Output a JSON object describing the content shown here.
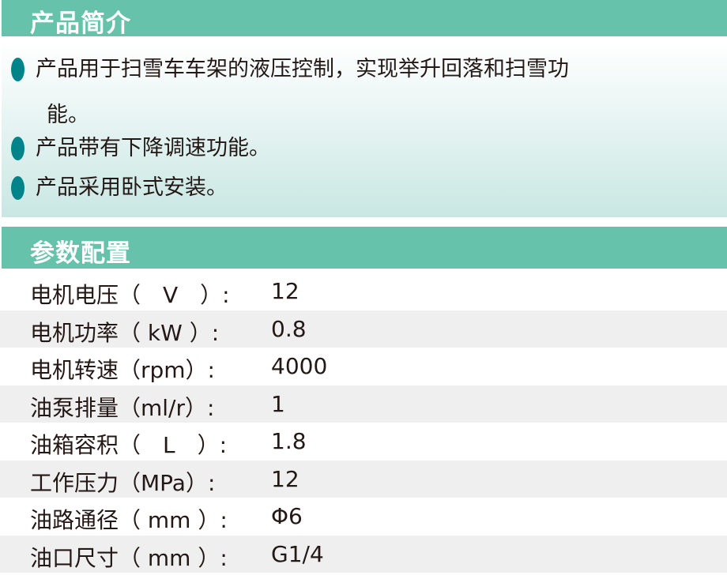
{
  "intro": {
    "title": "产品简介",
    "bullets": [
      {
        "line1": "产品用于扫雪车车架的液压控制，实现举升回落和扫雪功",
        "line2": "能。"
      },
      {
        "line1": "产品带有下降调速功能。"
      },
      {
        "line1": "产品采用卧式安装。"
      }
    ]
  },
  "specs": {
    "title": "参数配置",
    "rows": [
      {
        "label": "电机电压（　V　）:",
        "value": "12"
      },
      {
        "label": "电机功率（ kW ）:",
        "value": "0.8"
      },
      {
        "label": "电机转速（rpm）:",
        "value": "4000"
      },
      {
        "label": "油泵排量（ml/r）:",
        "value": "1"
      },
      {
        "label": "油箱容积（　L　）:",
        "value": "1.8"
      },
      {
        "label": "工作压力（MPa）:",
        "value": "12"
      },
      {
        "label": "油路通径（ mm ）:",
        "value": "Φ6"
      },
      {
        "label": "油口尺寸（ mm ）:",
        "value": "G1/4"
      }
    ]
  },
  "colors": {
    "header": "#66c2ab",
    "bullet": "#00848a",
    "row_alt": "#efefef"
  }
}
